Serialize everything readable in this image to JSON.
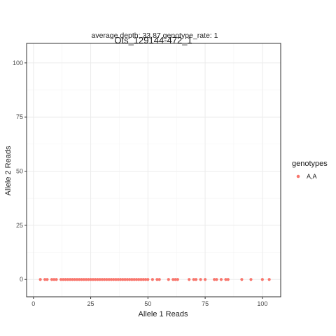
{
  "chart_data": {
    "type": "scatter",
    "title": "Ots_129144-472_1",
    "subtitle": "average depth:  33.87  genotype_rate:  1",
    "xlabel": "Allele 1 Reads",
    "ylabel": "Allele 2 Reads",
    "xlim": [
      -3,
      108
    ],
    "ylim": [
      -8,
      109
    ],
    "xticks": [
      0,
      25,
      50,
      75,
      100
    ],
    "yticks": [
      0,
      25,
      50,
      75,
      100
    ],
    "grid": true,
    "legend": {
      "title": "genotypes",
      "position": "right"
    },
    "series": [
      {
        "name": "A,A",
        "color": "#f8766d",
        "points": [
          [
            3,
            0
          ],
          [
            5,
            0
          ],
          [
            6,
            0
          ],
          [
            8,
            0
          ],
          [
            9,
            0
          ],
          [
            10,
            0
          ],
          [
            12,
            0
          ],
          [
            13,
            0
          ],
          [
            14,
            0
          ],
          [
            15,
            0
          ],
          [
            16,
            0
          ],
          [
            17,
            0
          ],
          [
            18,
            0
          ],
          [
            19,
            0
          ],
          [
            20,
            0
          ],
          [
            21,
            0
          ],
          [
            22,
            0
          ],
          [
            23,
            0
          ],
          [
            24,
            0
          ],
          [
            25,
            0
          ],
          [
            26,
            0
          ],
          [
            27,
            0
          ],
          [
            28,
            0
          ],
          [
            29,
            0
          ],
          [
            30,
            0
          ],
          [
            31,
            0
          ],
          [
            32,
            0
          ],
          [
            33,
            0
          ],
          [
            34,
            0
          ],
          [
            35,
            0
          ],
          [
            36,
            0
          ],
          [
            37,
            0
          ],
          [
            38,
            0
          ],
          [
            39,
            0
          ],
          [
            40,
            0
          ],
          [
            41,
            0
          ],
          [
            42,
            0
          ],
          [
            43,
            0
          ],
          [
            44,
            0
          ],
          [
            45,
            0
          ],
          [
            46,
            0
          ],
          [
            47,
            0
          ],
          [
            48,
            0
          ],
          [
            49,
            0
          ],
          [
            50,
            0
          ],
          [
            52,
            0
          ],
          [
            54,
            0
          ],
          [
            55,
            0
          ],
          [
            59,
            0
          ],
          [
            61,
            0
          ],
          [
            62,
            0
          ],
          [
            63,
            0
          ],
          [
            68,
            0
          ],
          [
            70,
            0
          ],
          [
            71,
            0
          ],
          [
            73,
            0
          ],
          [
            75,
            0
          ],
          [
            79,
            0
          ],
          [
            80,
            0
          ],
          [
            82,
            0
          ],
          [
            84,
            0
          ],
          [
            85,
            0
          ],
          [
            91,
            0
          ],
          [
            95,
            0
          ],
          [
            100,
            0
          ],
          [
            103,
            0
          ]
        ]
      }
    ]
  }
}
